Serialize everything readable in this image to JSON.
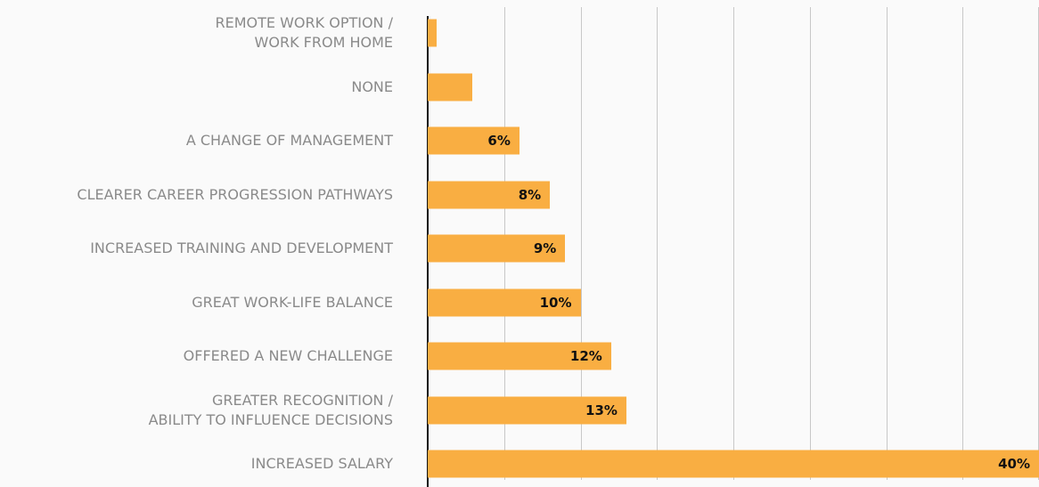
{
  "chart_data": {
    "type": "bar",
    "orientation": "horizontal",
    "categories": [
      "REMOTE WORK OPTION /\nWORK FROM HOME",
      "NONE",
      "A CHANGE OF MANAGEMENT",
      "CLEARER CAREER PROGRESSION PATHWAYS",
      "INCREASED TRAINING AND DEVELOPMENT",
      "GREAT WORK-LIFE BALANCE",
      "OFFERED A NEW CHALLENGE",
      "GREATER RECOGNITION /\nABILITY TO INFLUENCE DECISIONS",
      "INCREASED SALARY"
    ],
    "values": [
      0.6,
      2.9,
      6,
      8,
      9,
      10,
      12,
      13,
      40
    ],
    "value_labels": [
      null,
      null,
      "6%",
      "8%",
      "9%",
      "10%",
      "12%",
      "13%",
      "40%"
    ],
    "color": "#f9ae42",
    "xlim": [
      0,
      40
    ],
    "xticks": [
      0,
      5,
      10,
      15,
      20,
      25,
      30,
      35,
      40
    ],
    "grid": true
  }
}
